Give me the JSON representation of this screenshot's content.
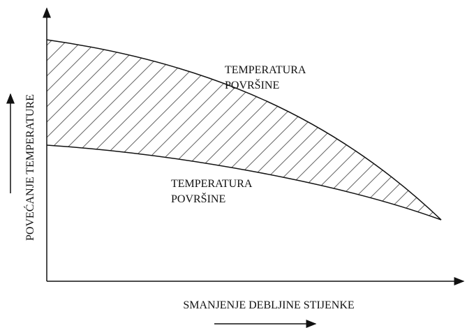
{
  "axes": {
    "y_label": "POVEĆANJE TEMPERATURE",
    "x_label": "SMANJENJE DEBLJINE STIJENKE"
  },
  "curves": [
    {
      "label_lines": [
        "TEMPERATURA",
        "POVRŠINE"
      ]
    },
    {
      "label_lines": [
        "TEMPERATURA",
        "POVRŠINE"
      ]
    }
  ]
}
